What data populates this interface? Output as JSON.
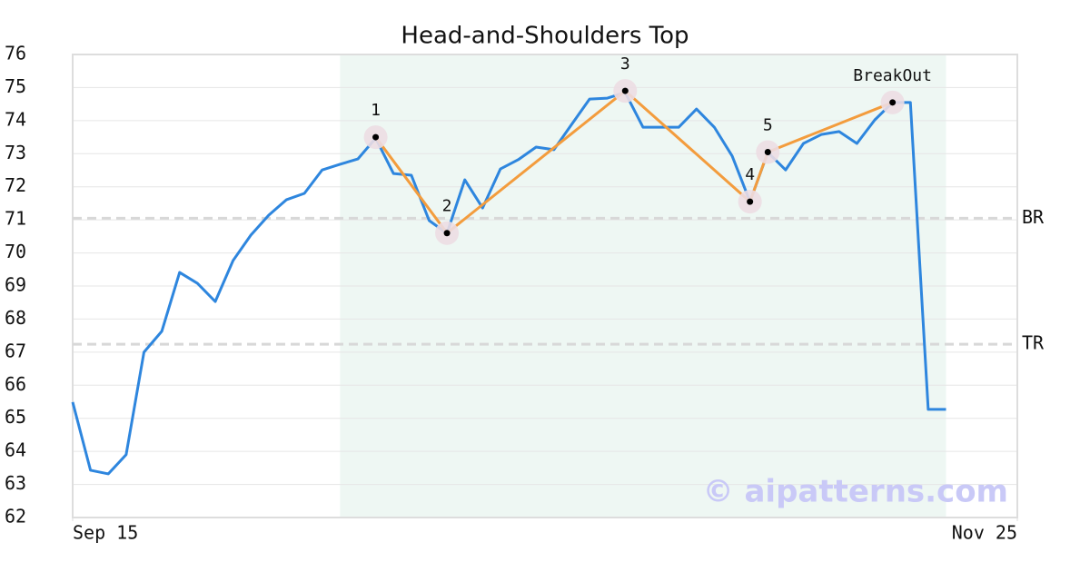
{
  "chart_data": {
    "type": "line",
    "title": "Head-and-Shoulders Top",
    "x": [
      0,
      1,
      2,
      3,
      4,
      5,
      6,
      7,
      8,
      9,
      10,
      11,
      12,
      13,
      14,
      15,
      16,
      17,
      18,
      19,
      20,
      21,
      22,
      23,
      24,
      25,
      26,
      27,
      28,
      29,
      30,
      31,
      32,
      33,
      34,
      35,
      36,
      37,
      38,
      39,
      40,
      41,
      42,
      43,
      44,
      45,
      46,
      47,
      48,
      49
    ],
    "values": [
      65.49,
      63.43,
      63.32,
      63.9,
      67.0,
      67.63,
      69.41,
      69.08,
      68.53,
      69.77,
      70.54,
      71.14,
      71.61,
      71.8,
      72.51,
      72.68,
      72.84,
      73.47,
      72.4,
      72.35,
      70.98,
      70.59,
      72.21,
      71.36,
      72.54,
      72.82,
      73.2,
      73.12,
      73.89,
      74.65,
      74.68,
      74.85,
      73.8,
      73.8,
      73.8,
      74.35,
      73.8,
      72.93,
      71.55,
      73.04,
      72.51,
      73.31,
      73.58,
      73.67,
      73.31,
      74.02,
      74.55,
      74.55,
      65.27,
      65.27
    ],
    "color": "#2e86de",
    "xlim": [
      0,
      53
    ],
    "xticks": [
      {
        "value": 0,
        "label": "Sep 15"
      },
      {
        "value": 53,
        "label": "Nov 25"
      }
    ],
    "ylim": [
      62,
      76
    ],
    "yticks": [
      62,
      63,
      64,
      65,
      66,
      67,
      68,
      69,
      70,
      71,
      72,
      73,
      74,
      75,
      76
    ],
    "grid": true,
    "highlight": {
      "xlim": [
        15,
        49
      ],
      "color": "#eef7f3"
    },
    "pattern": {
      "color": "#f39c3d",
      "points": [
        {
          "label": "1",
          "x": 17,
          "y": 73.5
        },
        {
          "label": "2",
          "x": 21,
          "y": 70.6
        },
        {
          "label": "3",
          "x": 31,
          "y": 74.9
        },
        {
          "label": "4",
          "x": 38,
          "y": 71.55
        },
        {
          "label": "5",
          "x": 39,
          "y": 73.05
        },
        {
          "label": "BreakOut",
          "x": 46,
          "y": 74.55
        }
      ]
    },
    "levels": [
      {
        "label": "BR",
        "value": 71.05
      },
      {
        "label": "TR",
        "value": 67.24
      }
    ],
    "watermark": "© aipatterns.com"
  }
}
